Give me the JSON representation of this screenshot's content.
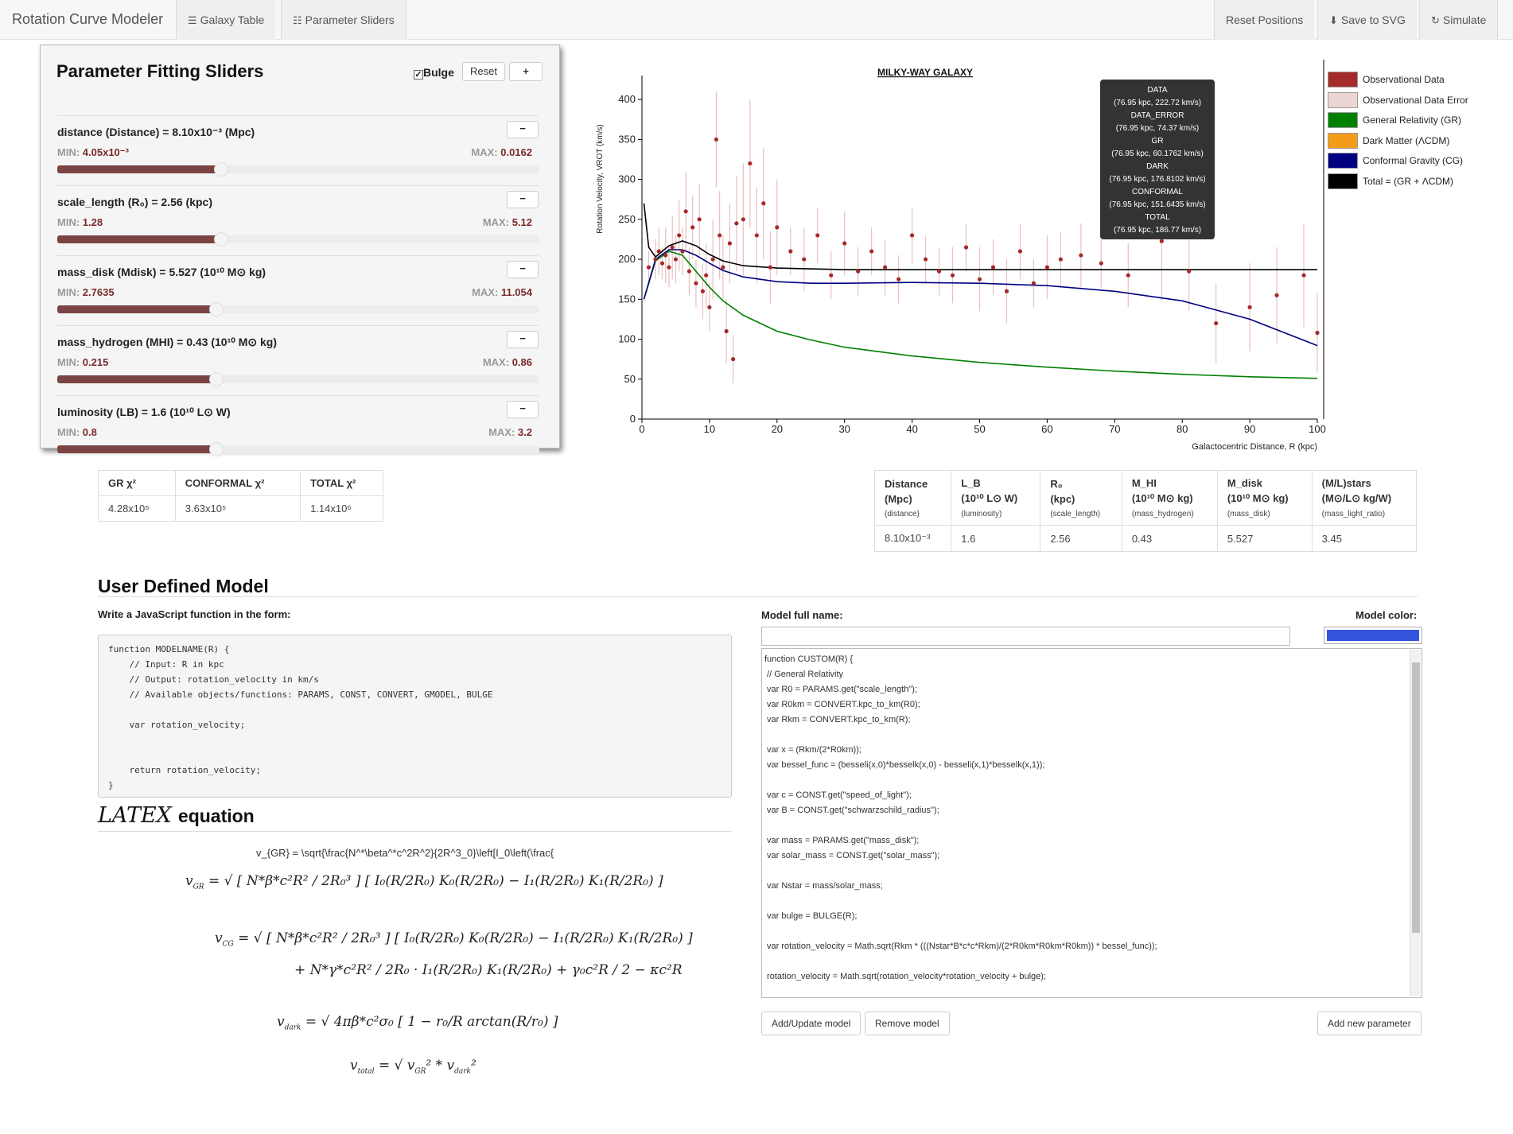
{
  "navbar": {
    "brand": "Rotation Curve Modeler",
    "galaxy_table": "Galaxy Table",
    "parameter_sliders": "Parameter Sliders",
    "reset_positions": "Reset Positions",
    "save_svg": "Save to SVG",
    "simulate": "Simulate"
  },
  "sliders_panel": {
    "title": "Parameter Fitting Sliders",
    "bulge_label": "Bulge",
    "bulge_checked": true,
    "reset_label": "Reset",
    "add_label": "+",
    "minus_label": "−",
    "params": [
      {
        "title_prefix": "distance (Distance) = ",
        "value": "8.10x10⁻³",
        "unit": " (Mpc)",
        "min": "4.05x10⁻³",
        "max": "0.0162",
        "fraction": 0.34
      },
      {
        "title_prefix": "scale_length (R₀) = ",
        "value": "2.56",
        "unit": " (kpc)",
        "min": "1.28",
        "max": "5.12",
        "fraction": 0.34
      },
      {
        "title_prefix": "mass_disk (Mdisk) = ",
        "value": "5.527",
        "unit": " (10¹⁰ M⊙ kg)",
        "min": "2.7635",
        "max": "11.054",
        "fraction": 0.33
      },
      {
        "title_prefix": "mass_hydrogen (MHI) = ",
        "value": "0.43",
        "unit": " (10¹⁰ M⊙ kg)",
        "min": "0.215",
        "max": "0.86",
        "fraction": 0.33
      },
      {
        "title_prefix": "luminosity (LB) = ",
        "value": "1.6",
        "unit": " (10¹⁰ L⊙ W)",
        "min": "0.8",
        "max": "3.2",
        "fraction": 0.33
      }
    ],
    "min_label": "MIN: ",
    "max_label": "MAX: "
  },
  "chi_table": {
    "headers": [
      "GR χ²",
      "CONFORMAL χ²",
      "TOTAL χ²"
    ],
    "values": [
      "4.28x10⁵",
      "3.63x10⁵",
      "1.14x10⁶"
    ]
  },
  "param_table": {
    "headers": [
      {
        "l1": "Distance",
        "l2": "(Mpc)",
        "l3": "(distance)"
      },
      {
        "l1": "L_B",
        "l2": "(10¹⁰ L⊙ W)",
        "l3": "(luminosity)"
      },
      {
        "l1": "R₀",
        "l2": "(kpc)",
        "l3": "(scale_length)"
      },
      {
        "l1": "M_HI",
        "l2": "(10¹⁰ M⊙ kg)",
        "l3": "(mass_hydrogen)"
      },
      {
        "l1": "M_disk",
        "l2": "(10¹⁰ M⊙ kg)",
        "l3": "(mass_disk)"
      },
      {
        "l1": "(M/L)stars",
        "l2": "(M⊙/L⊙ kg/W)",
        "l3": "(mass_light_ratio)"
      }
    ],
    "values": [
      "8.10x10⁻³",
      "1.6",
      "2.56",
      "0.43",
      "5.527",
      "3.45"
    ]
  },
  "user_model": {
    "heading": "User Defined Model",
    "instruction": "Write a JavaScript function in the form:",
    "template_code": "function MODELNAME(R) {\n    // Input: R in kpc\n    // Output: rotation_velocity in km/s\n    // Available objects/functions: PARAMS, CONST, CONVERT, GMODEL, BULGE\n\n    var rotation_velocity;\n\n\n    return rotation_velocity;\n}",
    "latex_logo": "LATEX",
    "latex_heading": "equation",
    "latex_raw": "v_{GR} = \\sqrt{\\frac{N^*\\beta^*c^2R^2}{2R^3_0}\\left[I_0\\left(\\frac{",
    "model_name_label": "Model full name:",
    "model_color_label": "Model color:",
    "model_color": "#3355dd",
    "model_name_value": "",
    "custom_code": "function CUSTOM(R) {\n // General Relativity\n var R0 = PARAMS.get(\"scale_length\");\n var R0km = CONVERT.kpc_to_km(R0);\n var Rkm = CONVERT.kpc_to_km(R);\n\n var x = (Rkm/(2*R0km));\n var bessel_func = (besseli(x,0)*besselk(x,0) - besseli(x,1)*besselk(x,1));\n\n var c = CONST.get(\"speed_of_light\");\n var B = CONST.get(\"schwarzschild_radius\");\n\n var mass = PARAMS.get(\"mass_disk\");\n var solar_mass = CONST.get(\"solar_mass\");\n\n var Nstar = mass/solar_mass;\n\n var bulge = BULGE(R);\n\n var rotation_velocity = Math.sqrt(Rkm * (((Nstar*B*c*c*Rkm)/(2*R0km*R0km*R0km)) * bessel_func));\n\n rotation_velocity = Math.sqrt(rotation_velocity*rotation_velocity + bulge);",
    "add_update": "Add/Update model",
    "remove": "Remove model",
    "add_param": "Add new parameter"
  },
  "tooltip": {
    "lines": [
      "DATA",
      "(76.95 kpc, 222.72 km/s)",
      "DATA_ERROR",
      "(76.95 kpc, 74.37 km/s)",
      "GR",
      "(76.95 kpc, 60.1762 km/s)",
      "DARK",
      "(76.95 kpc, 176.8102 km/s)",
      "CONFORMAL",
      "(76.95 kpc, 151.6435 km/s)",
      "TOTAL",
      "(76.95 kpc, 186.77 km/s)"
    ]
  },
  "chart_data": {
    "type": "scatter",
    "title": "MILKY-WAY GALAXY",
    "xlabel": "Galactocentric Distance, R (kpc)",
    "ylabel": "Rotation Velocity, VROT (km/s)",
    "xlim": [
      0,
      100
    ],
    "ylim": [
      0,
      430
    ],
    "xticks": [
      0,
      10,
      20,
      30,
      40,
      50,
      60,
      70,
      80,
      90,
      100
    ],
    "yticks": [
      0,
      50,
      100,
      150,
      200,
      250,
      300,
      350,
      400
    ],
    "legend_position": "right",
    "legend": [
      {
        "name": "Observational Data",
        "color": "#a52a2a"
      },
      {
        "name": "Observational Data Error",
        "color": "#eed5d5"
      },
      {
        "name": "General Relativity (GR)",
        "color": "#008000"
      },
      {
        "name": "Dark Matter (ΛCDM)",
        "color": "#f39c1a"
      },
      {
        "name": "Conformal Gravity (CG)",
        "color": "#000080"
      },
      {
        "name": "Total = (GR + ΛCDM)",
        "color": "#000000"
      }
    ],
    "series": [
      {
        "name": "General Relativity (GR)",
        "color": "#008000",
        "x": [
          0.3,
          2,
          4,
          6,
          8,
          10,
          12,
          15,
          20,
          25,
          30,
          40,
          50,
          60,
          70,
          80,
          90,
          100
        ],
        "y": [
          150,
          198,
          210,
          205,
          185,
          165,
          148,
          130,
          110,
          99,
          90,
          79,
          71,
          65,
          60,
          56,
          53,
          51
        ]
      },
      {
        "name": "Conformal Gravity (CG)",
        "color": "#000080",
        "x": [
          0.3,
          2,
          4,
          6,
          8,
          10,
          12,
          15,
          20,
          25,
          30,
          40,
          50,
          60,
          70,
          80,
          90,
          100
        ],
        "y": [
          150,
          200,
          212,
          212,
          205,
          195,
          186,
          178,
          172,
          170,
          170,
          171,
          170,
          167,
          160,
          148,
          125,
          92
        ]
      },
      {
        "name": "Total = (GR + ΛCDM)",
        "color": "#000000",
        "x": [
          0.3,
          1,
          2,
          4,
          6,
          8,
          10,
          12,
          15,
          20,
          25,
          30,
          40,
          50,
          60,
          70,
          80,
          90,
          100
        ],
        "y": [
          270,
          215,
          203,
          217,
          223,
          217,
          206,
          198,
          192,
          189,
          188,
          187,
          187,
          187,
          187,
          187,
          187,
          187,
          187
        ]
      }
    ],
    "observations": {
      "x": [
        1,
        2,
        2.5,
        3,
        3.5,
        4,
        4.5,
        5,
        5.5,
        6,
        6.5,
        7,
        7.5,
        8,
        8.5,
        9,
        9.5,
        10,
        10.5,
        11,
        11.5,
        12,
        12.5,
        13,
        13.5,
        14,
        15,
        16,
        17,
        18,
        19,
        20,
        22,
        24,
        26,
        28,
        30,
        32,
        34,
        36,
        38,
        40,
        42,
        44,
        46,
        48,
        50,
        52,
        54,
        56,
        58,
        60,
        62,
        65,
        68,
        72,
        76.95,
        81,
        85,
        90,
        94,
        98,
        100
      ],
      "y": [
        190,
        200,
        210,
        195,
        205,
        190,
        215,
        200,
        230,
        210,
        260,
        185,
        240,
        170,
        250,
        160,
        180,
        140,
        200,
        350,
        230,
        190,
        110,
        220,
        75,
        245,
        250,
        320,
        230,
        270,
        190,
        240,
        210,
        200,
        230,
        180,
        220,
        185,
        210,
        190,
        175,
        230,
        200,
        185,
        180,
        215,
        175,
        190,
        160,
        210,
        170,
        190,
        200,
        205,
        195,
        180,
        222.72,
        185,
        120,
        140,
        155,
        180,
        108
      ],
      "err": [
        20,
        25,
        30,
        20,
        35,
        25,
        40,
        30,
        45,
        30,
        50,
        30,
        40,
        30,
        45,
        35,
        40,
        30,
        50,
        60,
        55,
        40,
        40,
        50,
        30,
        60,
        70,
        80,
        60,
        70,
        45,
        60,
        30,
        40,
        35,
        30,
        40,
        30,
        30,
        35,
        30,
        35,
        30,
        30,
        35,
        30,
        40,
        35,
        40,
        35,
        30,
        40,
        35,
        40,
        30,
        40,
        74.37,
        50,
        50,
        55,
        60,
        65,
        50
      ]
    }
  }
}
